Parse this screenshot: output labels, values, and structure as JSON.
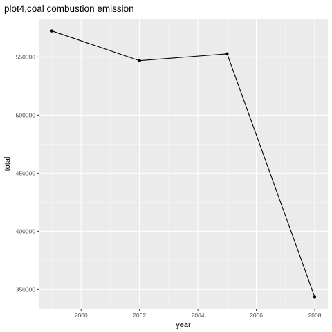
{
  "chart_data": {
    "type": "line",
    "title": "plot4,coal combustion emission",
    "xlabel": "year",
    "ylabel": "total",
    "x": [
      1999,
      2002,
      2005,
      2008
    ],
    "series": [
      {
        "values": [
          572500,
          546800,
          552700,
          343400
        ]
      }
    ],
    "xlim": [
      1998.55,
      2008.45
    ],
    "ylim": [
      332950,
      582950
    ],
    "x_ticks": [
      2000,
      2002,
      2004,
      2006,
      2008
    ],
    "y_ticks": [
      350000,
      400000,
      450000,
      500000,
      550000
    ],
    "x_tick_labels": [
      "2000",
      "2002",
      "2004",
      "2006",
      "2008"
    ],
    "y_tick_labels": [
      "350000",
      "400000",
      "450000",
      "500000",
      "550000"
    ],
    "grid": true,
    "legend": "none",
    "colors": {
      "panel_background": "#ebebeb",
      "grid_major": "#ffffff",
      "grid_minor": "#f5f5f5",
      "line": "#000000",
      "point": "#000000",
      "tick": "#333333"
    }
  }
}
